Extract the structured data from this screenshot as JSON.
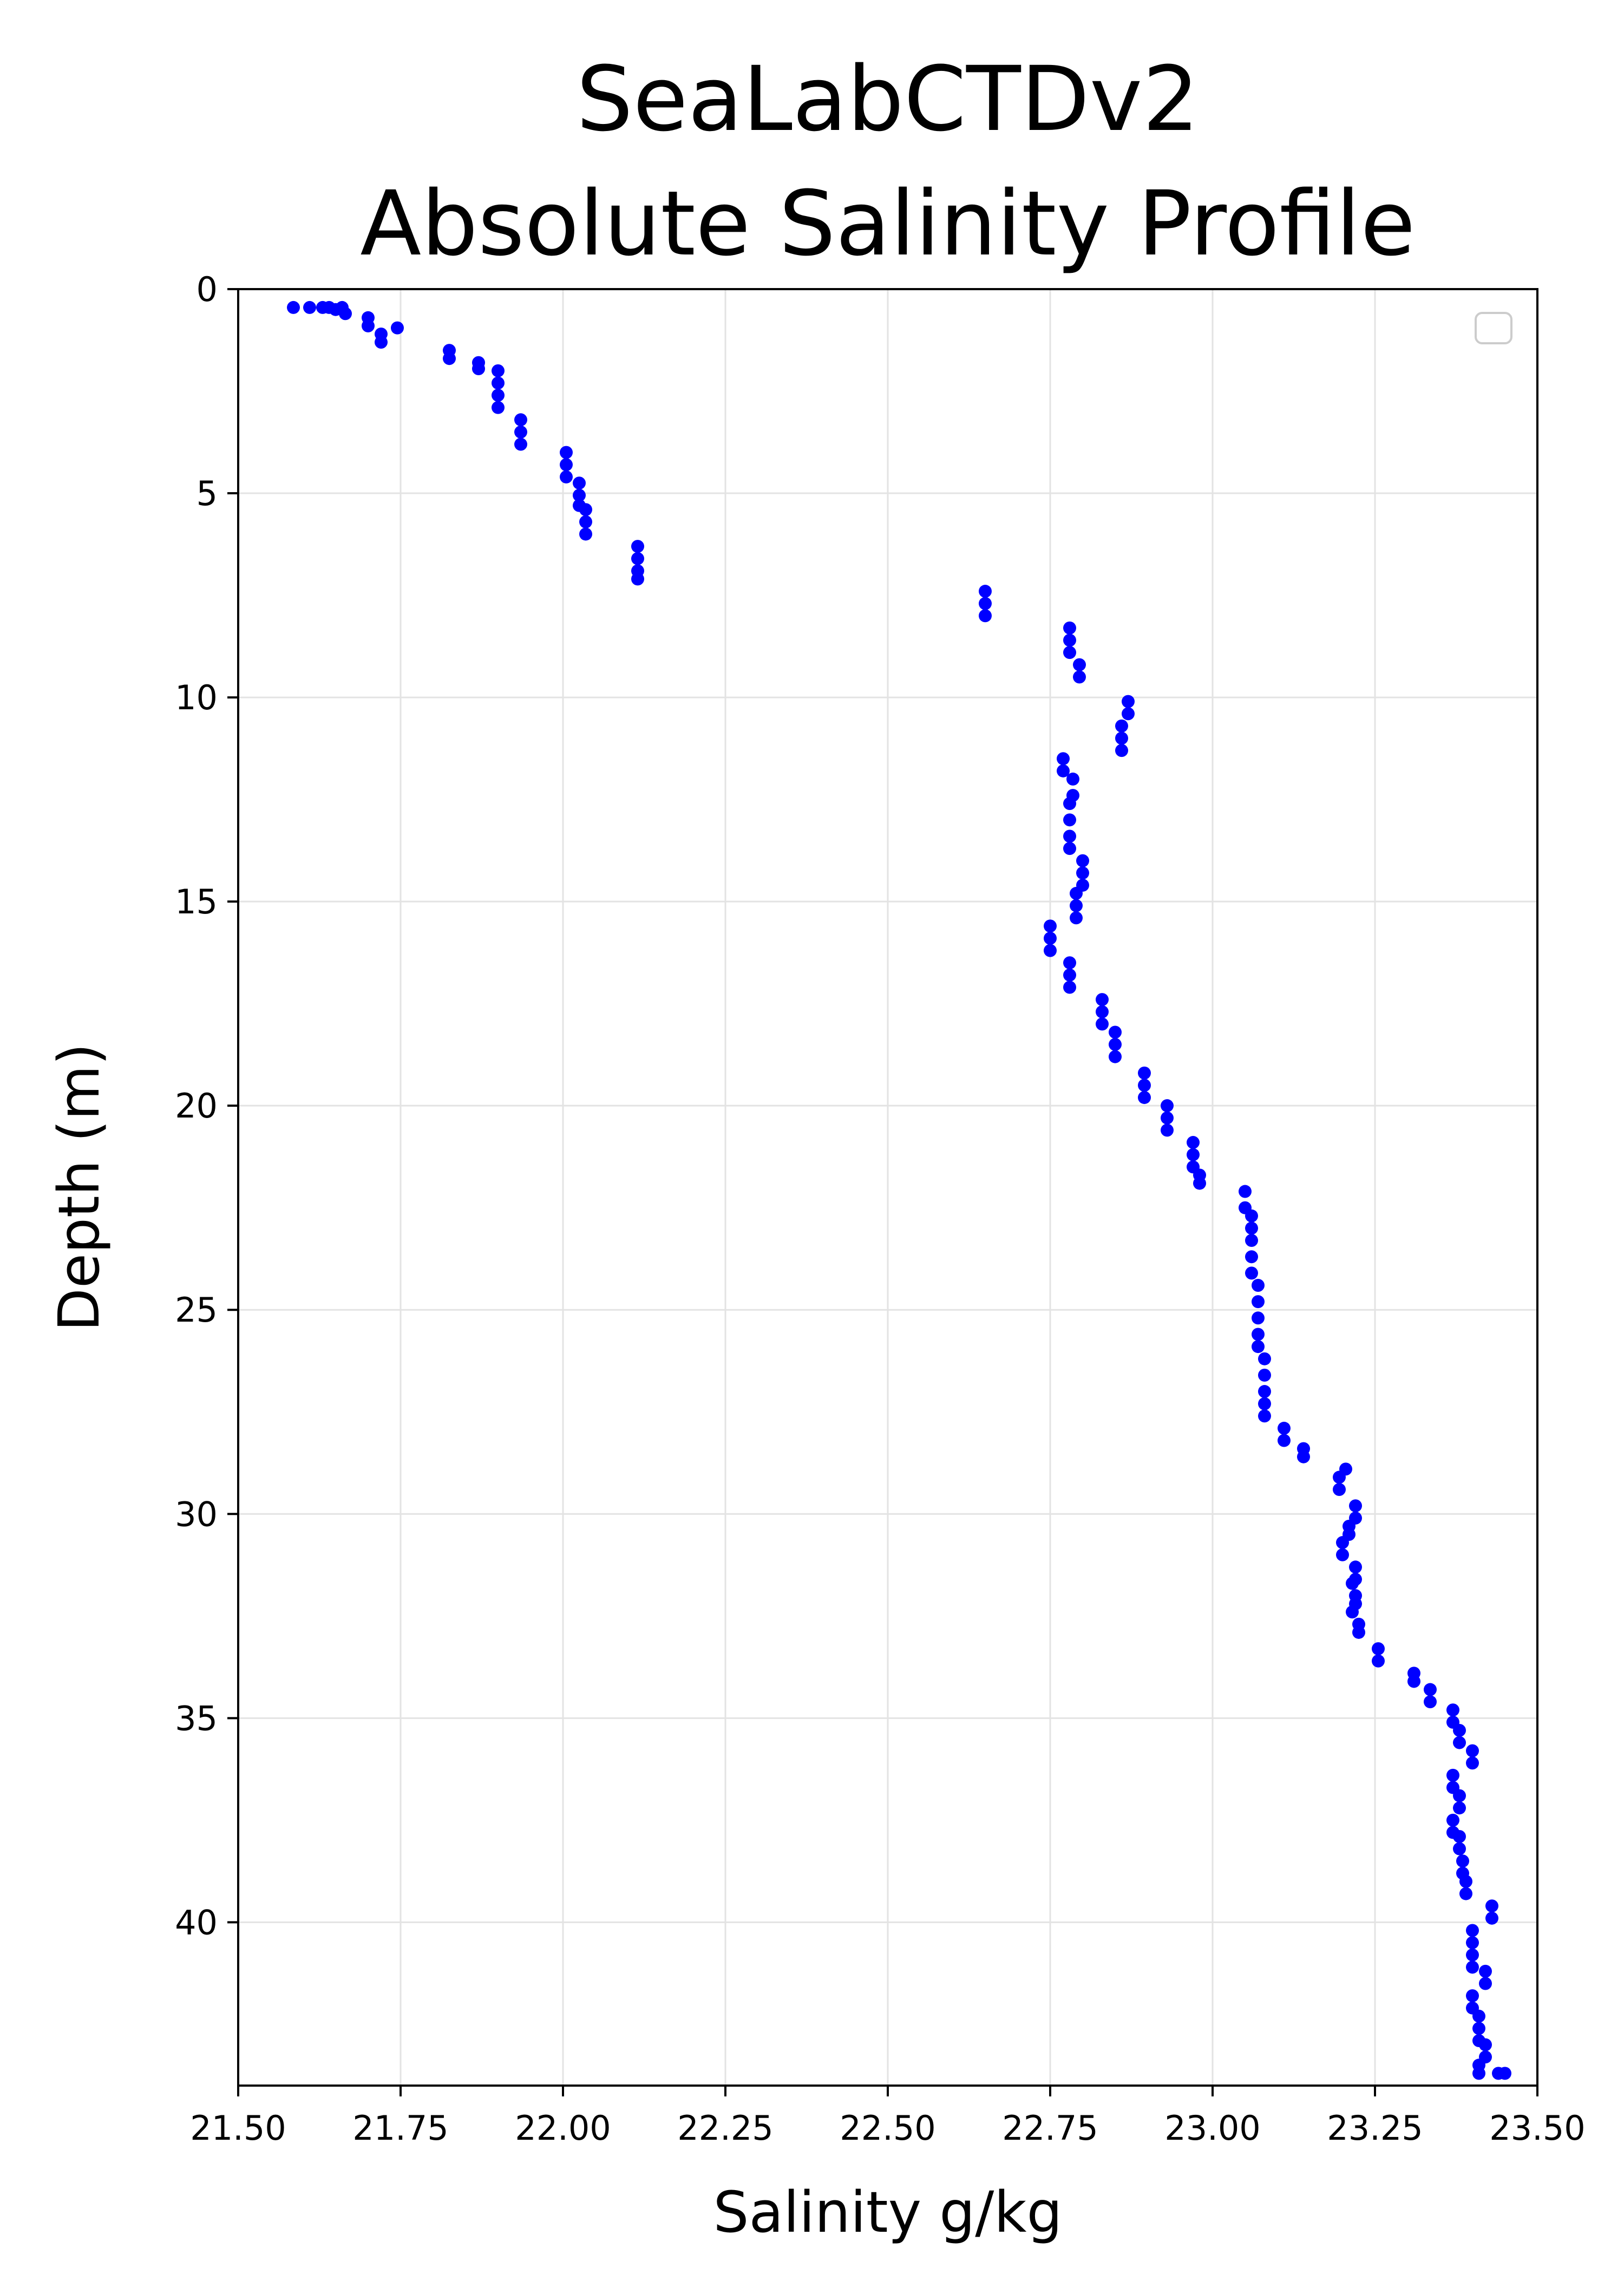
{
  "chart_data": {
    "type": "scatter",
    "title": [
      "SeaLabCTDv2",
      "Absolute Salinity Profile"
    ],
    "xlabel": "Salinity g/kg",
    "ylabel": "Depth (m)",
    "xlim": [
      21.5,
      23.5
    ],
    "ylim": [
      0,
      44
    ],
    "y_inverted": true,
    "xticks": [
      21.5,
      21.75,
      22.0,
      22.25,
      22.5,
      22.75,
      23.0,
      23.25,
      23.5
    ],
    "xtick_labels": [
      "21.50",
      "21.75",
      "22.00",
      "22.25",
      "22.50",
      "22.75",
      "23.00",
      "23.25",
      "23.50"
    ],
    "yticks": [
      0,
      5,
      10,
      15,
      20,
      25,
      30,
      35,
      40
    ],
    "ytick_labels": [
      "0",
      "5",
      "10",
      "15",
      "20",
      "25",
      "30",
      "35",
      "40"
    ],
    "grid": true,
    "legend": "top-right, empty",
    "marker_color": "#0000ff",
    "series": [
      {
        "points": [
          [
            21.585,
            0.45
          ],
          [
            21.61,
            0.45
          ],
          [
            21.63,
            0.45
          ],
          [
            21.64,
            0.45
          ],
          [
            21.65,
            0.5
          ],
          [
            21.66,
            0.45
          ],
          [
            21.665,
            0.6
          ],
          [
            21.7,
            0.7
          ],
          [
            21.7,
            0.9
          ],
          [
            21.745,
            0.95
          ],
          [
            21.72,
            1.1
          ],
          [
            21.72,
            1.3
          ],
          [
            21.825,
            1.5
          ],
          [
            21.825,
            1.7
          ],
          [
            21.87,
            1.8
          ],
          [
            21.87,
            1.95
          ],
          [
            21.9,
            2.0
          ],
          [
            21.9,
            2.3
          ],
          [
            21.9,
            2.6
          ],
          [
            21.9,
            2.9
          ],
          [
            21.935,
            3.2
          ],
          [
            21.935,
            3.5
          ],
          [
            21.935,
            3.8
          ],
          [
            22.005,
            4.0
          ],
          [
            22.005,
            4.3
          ],
          [
            22.005,
            4.6
          ],
          [
            22.025,
            4.75
          ],
          [
            22.025,
            5.05
          ],
          [
            22.025,
            5.3
          ],
          [
            22.035,
            5.4
          ],
          [
            22.035,
            5.7
          ],
          [
            22.035,
            6.0
          ],
          [
            22.115,
            6.3
          ],
          [
            22.115,
            6.6
          ],
          [
            22.115,
            6.9
          ],
          [
            22.115,
            7.1
          ],
          [
            22.65,
            7.4
          ],
          [
            22.65,
            7.7
          ],
          [
            22.65,
            8.0
          ],
          [
            22.78,
            8.3
          ],
          [
            22.78,
            8.6
          ],
          [
            22.78,
            8.9
          ],
          [
            22.795,
            9.2
          ],
          [
            22.795,
            9.5
          ],
          [
            22.87,
            10.1
          ],
          [
            22.87,
            10.4
          ],
          [
            22.86,
            10.7
          ],
          [
            22.86,
            11.0
          ],
          [
            22.86,
            11.3
          ],
          [
            22.77,
            11.5
          ],
          [
            22.77,
            11.8
          ],
          [
            22.785,
            12.0
          ],
          [
            22.785,
            12.4
          ],
          [
            22.78,
            12.6
          ],
          [
            22.78,
            13.0
          ],
          [
            22.78,
            13.4
          ],
          [
            22.78,
            13.7
          ],
          [
            22.8,
            14.0
          ],
          [
            22.8,
            14.3
          ],
          [
            22.8,
            14.6
          ],
          [
            22.79,
            14.8
          ],
          [
            22.79,
            15.1
          ],
          [
            22.79,
            15.4
          ],
          [
            22.75,
            15.6
          ],
          [
            22.75,
            15.9
          ],
          [
            22.75,
            16.2
          ],
          [
            22.78,
            16.5
          ],
          [
            22.78,
            16.8
          ],
          [
            22.78,
            17.1
          ],
          [
            22.83,
            17.4
          ],
          [
            22.83,
            17.7
          ],
          [
            22.83,
            18.0
          ],
          [
            22.85,
            18.2
          ],
          [
            22.85,
            18.5
          ],
          [
            22.85,
            18.8
          ],
          [
            22.895,
            19.2
          ],
          [
            22.895,
            19.5
          ],
          [
            22.895,
            19.8
          ],
          [
            22.93,
            20.0
          ],
          [
            22.93,
            20.3
          ],
          [
            22.93,
            20.6
          ],
          [
            22.97,
            20.9
          ],
          [
            22.97,
            21.2
          ],
          [
            22.97,
            21.5
          ],
          [
            22.98,
            21.7
          ],
          [
            22.98,
            21.9
          ],
          [
            23.05,
            22.1
          ],
          [
            23.05,
            22.5
          ],
          [
            23.06,
            22.7
          ],
          [
            23.06,
            23.0
          ],
          [
            23.06,
            23.3
          ],
          [
            23.06,
            23.7
          ],
          [
            23.06,
            24.1
          ],
          [
            23.07,
            24.4
          ],
          [
            23.07,
            24.8
          ],
          [
            23.07,
            25.2
          ],
          [
            23.07,
            25.6
          ],
          [
            23.07,
            25.9
          ],
          [
            23.08,
            26.2
          ],
          [
            23.08,
            26.6
          ],
          [
            23.08,
            27.0
          ],
          [
            23.08,
            27.3
          ],
          [
            23.08,
            27.6
          ],
          [
            23.11,
            27.9
          ],
          [
            23.11,
            28.2
          ],
          [
            23.14,
            28.4
          ],
          [
            23.14,
            28.6
          ],
          [
            23.205,
            28.9
          ],
          [
            23.195,
            29.1
          ],
          [
            23.195,
            29.4
          ],
          [
            23.22,
            29.8
          ],
          [
            23.22,
            30.1
          ],
          [
            23.21,
            30.3
          ],
          [
            23.21,
            30.5
          ],
          [
            23.2,
            30.7
          ],
          [
            23.2,
            31.0
          ],
          [
            23.22,
            31.3
          ],
          [
            23.22,
            31.6
          ],
          [
            23.215,
            31.7
          ],
          [
            23.22,
            32.0
          ],
          [
            23.22,
            32.2
          ],
          [
            23.215,
            32.4
          ],
          [
            23.225,
            32.7
          ],
          [
            23.225,
            32.9
          ],
          [
            23.255,
            33.3
          ],
          [
            23.255,
            33.6
          ],
          [
            23.31,
            33.9
          ],
          [
            23.31,
            34.1
          ],
          [
            23.335,
            34.3
          ],
          [
            23.335,
            34.6
          ],
          [
            23.37,
            34.8
          ],
          [
            23.37,
            35.1
          ],
          [
            23.38,
            35.3
          ],
          [
            23.38,
            35.6
          ],
          [
            23.4,
            35.8
          ],
          [
            23.4,
            36.1
          ],
          [
            23.37,
            36.4
          ],
          [
            23.37,
            36.7
          ],
          [
            23.38,
            36.9
          ],
          [
            23.38,
            37.2
          ],
          [
            23.37,
            37.5
          ],
          [
            23.37,
            37.8
          ],
          [
            23.38,
            37.9
          ],
          [
            23.38,
            38.2
          ],
          [
            23.385,
            38.5
          ],
          [
            23.385,
            38.8
          ],
          [
            23.39,
            39.0
          ],
          [
            23.39,
            39.3
          ],
          [
            23.43,
            39.6
          ],
          [
            23.43,
            39.9
          ],
          [
            23.4,
            40.2
          ],
          [
            23.4,
            40.5
          ],
          [
            23.4,
            40.8
          ],
          [
            23.4,
            41.1
          ],
          [
            23.42,
            41.2
          ],
          [
            23.42,
            41.5
          ],
          [
            23.4,
            41.8
          ],
          [
            23.4,
            42.1
          ],
          [
            23.41,
            42.3
          ],
          [
            23.41,
            42.6
          ],
          [
            23.41,
            42.9
          ],
          [
            23.42,
            43.0
          ],
          [
            23.42,
            43.3
          ],
          [
            23.41,
            43.5
          ],
          [
            23.41,
            43.7
          ],
          [
            23.44,
            43.7
          ],
          [
            23.45,
            43.7
          ]
        ]
      }
    ]
  }
}
